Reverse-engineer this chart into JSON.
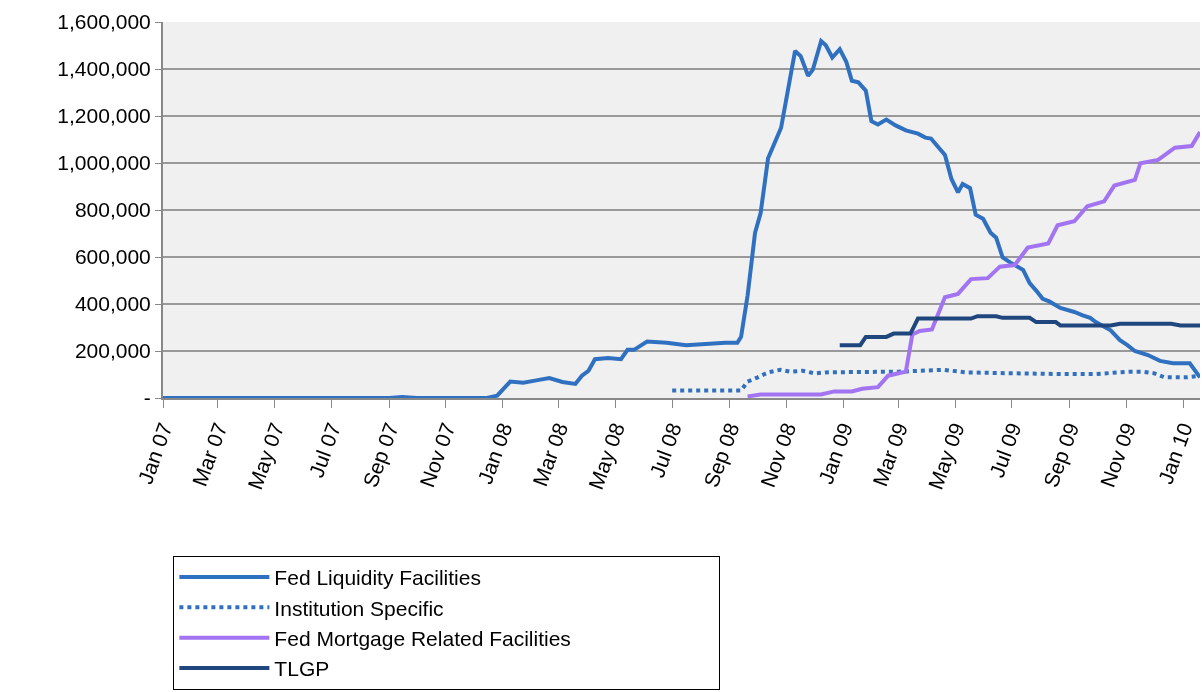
{
  "chart_data": {
    "type": "line",
    "xlim": [
      "2007-01-01",
      "2010-01-19"
    ],
    "xticks": [
      {
        "value": "2007-01-01",
        "label": "Jan 07"
      },
      {
        "value": "2007-03-01",
        "label": "Mar 07"
      },
      {
        "value": "2007-05-01",
        "label": "May 07"
      },
      {
        "value": "2007-07-01",
        "label": "Jul 07"
      },
      {
        "value": "2007-09-01",
        "label": "Sep 07"
      },
      {
        "value": "2007-11-01",
        "label": "Nov 07"
      },
      {
        "value": "2008-01-01",
        "label": "Jan 08"
      },
      {
        "value": "2008-03-01",
        "label": "Mar 08"
      },
      {
        "value": "2008-05-01",
        "label": "May 08"
      },
      {
        "value": "2008-07-01",
        "label": "Jul 08"
      },
      {
        "value": "2008-09-01",
        "label": "Sep 08"
      },
      {
        "value": "2008-11-01",
        "label": "Nov 08"
      },
      {
        "value": "2009-01-01",
        "label": "Jan 09"
      },
      {
        "value": "2009-03-01",
        "label": "Mar 09"
      },
      {
        "value": "2009-05-01",
        "label": "May 09"
      },
      {
        "value": "2009-07-01",
        "label": "Jul 09"
      },
      {
        "value": "2009-09-01",
        "label": "Sep 09"
      },
      {
        "value": "2009-11-01",
        "label": "Nov 09"
      },
      {
        "value": "2010-01-01",
        "label": "Jan 10"
      }
    ],
    "ylim": [
      0,
      1600000
    ],
    "yticks": [
      {
        "value": 0,
        "label": "-"
      },
      {
        "value": 200000,
        "label": "200,000"
      },
      {
        "value": 400000,
        "label": "400,000"
      },
      {
        "value": 600000,
        "label": "600,000"
      },
      {
        "value": 800000,
        "label": "800,000"
      },
      {
        "value": 1000000,
        "label": "1,000,000"
      },
      {
        "value": 1200000,
        "label": "1,200,000"
      },
      {
        "value": 1400000,
        "label": "1,400,000"
      },
      {
        "value": 1600000,
        "label": "1,600,000"
      }
    ],
    "grid": "y",
    "legend": "bottom",
    "line_style": "solid",
    "series": [
      {
        "name": "Fed Liquidity Facilities",
        "color": "#3070c0",
        "x": [
          "2007-01-01",
          "2007-06-01",
          "2007-09-01",
          "2007-09-15",
          "2007-10-01",
          "2007-12-15",
          "2007-12-26",
          "2008-01-09",
          "2008-01-23",
          "2008-02-06",
          "2008-02-20",
          "2008-03-05",
          "2008-03-19",
          "2008-03-26",
          "2008-04-02",
          "2008-04-09",
          "2008-04-23",
          "2008-05-07",
          "2008-05-14",
          "2008-05-21",
          "2008-06-04",
          "2008-06-25",
          "2008-07-16",
          "2008-08-06",
          "2008-08-27",
          "2008-09-09",
          "2008-09-13",
          "2008-09-20",
          "2008-09-28",
          "2008-10-04",
          "2008-10-12",
          "2008-10-26",
          "2008-11-10",
          "2008-11-16",
          "2008-11-24",
          "2008-11-29",
          "2008-12-08",
          "2008-12-13",
          "2008-12-20",
          "2008-12-28",
          "2009-01-04",
          "2009-01-10",
          "2009-01-17",
          "2009-01-25",
          "2009-01-31",
          "2009-02-07",
          "2009-02-16",
          "2009-02-26",
          "2009-03-09",
          "2009-03-22",
          "2009-03-30",
          "2009-04-05",
          "2009-04-20",
          "2009-04-27",
          "2009-05-04",
          "2009-05-09",
          "2009-05-17",
          "2009-05-23",
          "2009-05-31",
          "2009-06-08",
          "2009-06-14",
          "2009-06-21",
          "2009-06-29",
          "2009-07-13",
          "2009-07-20",
          "2009-07-27",
          "2009-08-03",
          "2009-08-10",
          "2009-08-22",
          "2009-09-06",
          "2009-09-15",
          "2009-09-23",
          "2009-09-29",
          "2009-10-15",
          "2009-10-25",
          "2009-11-02",
          "2009-11-10",
          "2009-11-24",
          "2009-12-07",
          "2009-12-21",
          "2010-01-08",
          "2010-01-19"
        ],
        "values": [
          0,
          0,
          0,
          4000,
          0,
          0,
          10000,
          70000,
          65000,
          75000,
          85000,
          68000,
          60000,
          95000,
          115000,
          165000,
          170000,
          165000,
          205000,
          205000,
          240000,
          235000,
          225000,
          230000,
          235000,
          235000,
          260000,
          436000,
          703000,
          787000,
          1020000,
          1150000,
          1477000,
          1455000,
          1371000,
          1396000,
          1519000,
          1501000,
          1449000,
          1484000,
          1431000,
          1350000,
          1343000,
          1308000,
          1178000,
          1164000,
          1185000,
          1160000,
          1139000,
          1125000,
          1108000,
          1104000,
          1034000,
          932000,
          875000,
          911000,
          893000,
          780000,
          763000,
          703000,
          682000,
          598000,
          577000,
          545000,
          489000,
          457000,
          422000,
          411000,
          383000,
          366000,
          352000,
          341000,
          323000,
          288000,
          246000,
          225000,
          200000,
          183000,
          158000,
          148000,
          148000,
          88000
        ]
      },
      {
        "name": "Institution Specific",
        "color": "#3070c0",
        "line_style": "dotted",
        "x": [
          "2008-07-01",
          "2008-09-09",
          "2008-09-13",
          "2008-09-20",
          "2008-10-01",
          "2008-10-12",
          "2008-10-25",
          "2008-11-05",
          "2008-11-18",
          "2008-12-01",
          "2008-12-13",
          "2009-01-01",
          "2009-03-01",
          "2009-04-18",
          "2009-05-13",
          "2009-07-04",
          "2009-08-22",
          "2009-09-28",
          "2009-10-25",
          "2009-11-05",
          "2009-11-18",
          "2009-12-01",
          "2009-12-12",
          "2010-01-05",
          "2010-01-19"
        ],
        "values": [
          32000,
          32000,
          32000,
          70000,
          88000,
          109000,
          120000,
          112000,
          116000,
          105000,
          109000,
          110000,
          112000,
          120000,
          109000,
          105000,
          102000,
          102000,
          109000,
          112000,
          112000,
          105000,
          88000,
          88000,
          95000
        ]
      },
      {
        "name": "Fed Mortgage Related Facilities",
        "color": "#a274f2",
        "x": [
          "2008-09-20",
          "2008-10-04",
          "2008-12-08",
          "2008-12-22",
          "2009-01-10",
          "2009-01-21",
          "2009-02-07",
          "2009-02-18",
          "2009-03-09",
          "2009-03-16",
          "2009-03-24",
          "2009-04-06",
          "2009-04-20",
          "2009-05-04",
          "2009-05-18",
          "2009-06-05",
          "2009-06-18",
          "2009-07-04",
          "2009-07-18",
          "2009-08-09",
          "2009-08-19",
          "2009-09-06",
          "2009-09-20",
          "2009-10-08",
          "2009-10-19",
          "2009-11-10",
          "2009-11-16",
          "2009-12-05",
          "2009-12-23",
          "2010-01-10",
          "2010-01-19"
        ],
        "values": [
          7000,
          15000,
          15000,
          28000,
          28000,
          39000,
          46000,
          95000,
          112000,
          271000,
          285000,
          292000,
          429000,
          443000,
          506000,
          510000,
          559000,
          566000,
          640000,
          658000,
          735000,
          752000,
          816000,
          837000,
          904000,
          928000,
          999000,
          1013000,
          1065000,
          1072000,
          1132000
        ]
      },
      {
        "name": "TLGP",
        "color": "#1f477d",
        "x": [
          "2008-12-28",
          "2009-01-19",
          "2009-01-25",
          "2009-02-16",
          "2009-02-24",
          "2009-03-14",
          "2009-03-22",
          "2009-05-18",
          "2009-05-25",
          "2009-06-14",
          "2009-06-21",
          "2009-07-20",
          "2009-07-27",
          "2009-08-17",
          "2009-08-22",
          "2009-10-15",
          "2009-10-25",
          "2009-12-19",
          "2009-12-29",
          "2010-01-19"
        ],
        "values": [
          225000,
          225000,
          260000,
          260000,
          274000,
          274000,
          338000,
          338000,
          348000,
          348000,
          341000,
          341000,
          323000,
          323000,
          309000,
          309000,
          316000,
          316000,
          309000,
          309000
        ]
      }
    ]
  }
}
